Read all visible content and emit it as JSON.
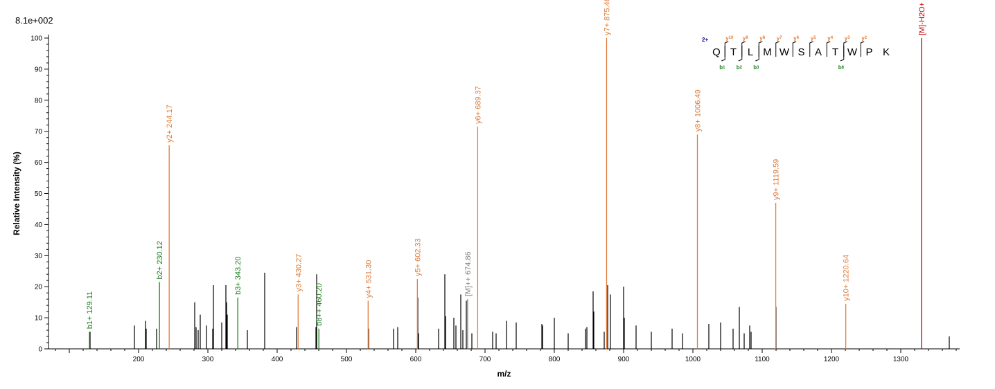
{
  "scale_label": "8.1e+002",
  "chart_data": {
    "type": "bar",
    "xlabel": "m/z",
    "ylabel": "Relative   Intensity (%)",
    "xlim": [
      70,
      1385
    ],
    "ylim": [
      0,
      100
    ],
    "xticks": [
      200,
      300,
      400,
      500,
      600,
      700,
      800,
      900,
      1000,
      1100,
      1200,
      1300
    ],
    "yticks": [
      0,
      10,
      20,
      30,
      40,
      50,
      60,
      70,
      80,
      90,
      100
    ],
    "colors": {
      "b": "#1a7f1a",
      "y": "#e07b39",
      "precursor": "#808080",
      "precursor_loss": "#cc0000",
      "unassigned": "#000000",
      "charge": "#00008b"
    },
    "annotated_peaks": [
      {
        "mz": 129.11,
        "intensity": 5.5,
        "label": "b1+ 129.11",
        "ion": "b"
      },
      {
        "mz": 230.12,
        "intensity": 21.5,
        "label": "b2+ 230.12",
        "ion": "b"
      },
      {
        "mz": 244.17,
        "intensity": 65.5,
        "label": "y2+ 244.17",
        "ion": "y"
      },
      {
        "mz": 343.2,
        "intensity": 16.5,
        "label": "b3+ 343.20",
        "ion": "b"
      },
      {
        "mz": 430.27,
        "intensity": 17.5,
        "label": "y3+ 430.27",
        "ion": "y"
      },
      {
        "mz": 460.2,
        "intensity": 6.5,
        "label": "b8++ 460.20",
        "ion": "b"
      },
      {
        "mz": 531.3,
        "intensity": 15.5,
        "label": "y4+ 531.30",
        "ion": "y"
      },
      {
        "mz": 602.33,
        "intensity": 22.5,
        "label": "y5+ 602.33",
        "ion": "y"
      },
      {
        "mz": 674.86,
        "intensity": 16,
        "label": "[M]++ 674.86",
        "ion": "precursor"
      },
      {
        "mz": 689.37,
        "intensity": 71.5,
        "label": "y6+ 689.37",
        "ion": "y"
      },
      {
        "mz": 875.46,
        "intensity": 100,
        "label": "y7+ 875.46",
        "ion": "y"
      },
      {
        "mz": 1006.49,
        "intensity": 69,
        "label": "y8+ 1006.49",
        "ion": "y"
      },
      {
        "mz": 1119.59,
        "intensity": 47,
        "label": "y9+ 1119.59",
        "ion": "y"
      },
      {
        "mz": 1220.64,
        "intensity": 14.5,
        "label": "y10+ 1220.64",
        "ion": "y"
      },
      {
        "mz": 1330,
        "intensity": 100,
        "label": "[M]-H2O+",
        "ion": "precursor_loss"
      }
    ],
    "unassigned_peaks": [
      {
        "mz": 130,
        "intensity": 5.5
      },
      {
        "mz": 194,
        "intensity": 7.5
      },
      {
        "mz": 210,
        "intensity": 9
      },
      {
        "mz": 211,
        "intensity": 6.5
      },
      {
        "mz": 226,
        "intensity": 6.5
      },
      {
        "mz": 281,
        "intensity": 15
      },
      {
        "mz": 283,
        "intensity": 7
      },
      {
        "mz": 286,
        "intensity": 6
      },
      {
        "mz": 289,
        "intensity": 11
      },
      {
        "mz": 298,
        "intensity": 7.5
      },
      {
        "mz": 307,
        "intensity": 6.5
      },
      {
        "mz": 308,
        "intensity": 20.5
      },
      {
        "mz": 320,
        "intensity": 8.5
      },
      {
        "mz": 326,
        "intensity": 20.5
      },
      {
        "mz": 327,
        "intensity": 15
      },
      {
        "mz": 328,
        "intensity": 11
      },
      {
        "mz": 357,
        "intensity": 6
      },
      {
        "mz": 382,
        "intensity": 24.5
      },
      {
        "mz": 428,
        "intensity": 7
      },
      {
        "mz": 456,
        "intensity": 7
      },
      {
        "mz": 457,
        "intensity": 24
      },
      {
        "mz": 532,
        "intensity": 6.5
      },
      {
        "mz": 568,
        "intensity": 6.5
      },
      {
        "mz": 574,
        "intensity": 7
      },
      {
        "mz": 603,
        "intensity": 16.5
      },
      {
        "mz": 604,
        "intensity": 5
      },
      {
        "mz": 633,
        "intensity": 6.5
      },
      {
        "mz": 642,
        "intensity": 24
      },
      {
        "mz": 643,
        "intensity": 10.5
      },
      {
        "mz": 655,
        "intensity": 10
      },
      {
        "mz": 658,
        "intensity": 7.5
      },
      {
        "mz": 665,
        "intensity": 17.5
      },
      {
        "mz": 668,
        "intensity": 6
      },
      {
        "mz": 673,
        "intensity": 15.5
      },
      {
        "mz": 681,
        "intensity": 5
      },
      {
        "mz": 711,
        "intensity": 5.5
      },
      {
        "mz": 716,
        "intensity": 5
      },
      {
        "mz": 731,
        "intensity": 9
      },
      {
        "mz": 745,
        "intensity": 8.5
      },
      {
        "mz": 782,
        "intensity": 8
      },
      {
        "mz": 783,
        "intensity": 7.5
      },
      {
        "mz": 800,
        "intensity": 10
      },
      {
        "mz": 820,
        "intensity": 5
      },
      {
        "mz": 845,
        "intensity": 6.5
      },
      {
        "mz": 847,
        "intensity": 7
      },
      {
        "mz": 856,
        "intensity": 18.5
      },
      {
        "mz": 857,
        "intensity": 12
      },
      {
        "mz": 872,
        "intensity": 5.5
      },
      {
        "mz": 877,
        "intensity": 20.5
      },
      {
        "mz": 881,
        "intensity": 17.5
      },
      {
        "mz": 900,
        "intensity": 20
      },
      {
        "mz": 901,
        "intensity": 10
      },
      {
        "mz": 918,
        "intensity": 7.5
      },
      {
        "mz": 940,
        "intensity": 5.5
      },
      {
        "mz": 970,
        "intensity": 6.5
      },
      {
        "mz": 985,
        "intensity": 5
      },
      {
        "mz": 1023,
        "intensity": 8
      },
      {
        "mz": 1040,
        "intensity": 8.5
      },
      {
        "mz": 1058,
        "intensity": 6.5
      },
      {
        "mz": 1067,
        "intensity": 13.5
      },
      {
        "mz": 1074,
        "intensity": 5
      },
      {
        "mz": 1082,
        "intensity": 7.5
      },
      {
        "mz": 1084,
        "intensity": 5.5
      },
      {
        "mz": 1120,
        "intensity": 13.5
      },
      {
        "mz": 1370,
        "intensity": 4
      }
    ]
  },
  "sequence_map": {
    "charge": "2+",
    "residues": [
      "Q",
      "T",
      "L",
      "M",
      "W",
      "S",
      "A",
      "T",
      "W",
      "P",
      "K"
    ],
    "y_ions": [
      {
        "label": "y",
        "num": "10",
        "after": 0
      },
      {
        "label": "y",
        "num": "9",
        "after": 1
      },
      {
        "label": "y",
        "num": "8",
        "after": 2
      },
      {
        "label": "y",
        "num": "7",
        "after": 3
      },
      {
        "label": "y",
        "num": "6",
        "after": 4
      },
      {
        "label": "y",
        "num": "5",
        "after": 5
      },
      {
        "label": "y",
        "num": "4",
        "after": 6
      },
      {
        "label": "y",
        "num": "3",
        "after": 7
      },
      {
        "label": "y",
        "num": "2",
        "after": 8
      }
    ],
    "b_ions": [
      {
        "label": "b",
        "num": "1",
        "after": 0
      },
      {
        "label": "b",
        "num": "2",
        "after": 1
      },
      {
        "label": "b",
        "num": "3",
        "after": 2
      },
      {
        "label": "b",
        "num": "8",
        "after": 7
      }
    ]
  }
}
